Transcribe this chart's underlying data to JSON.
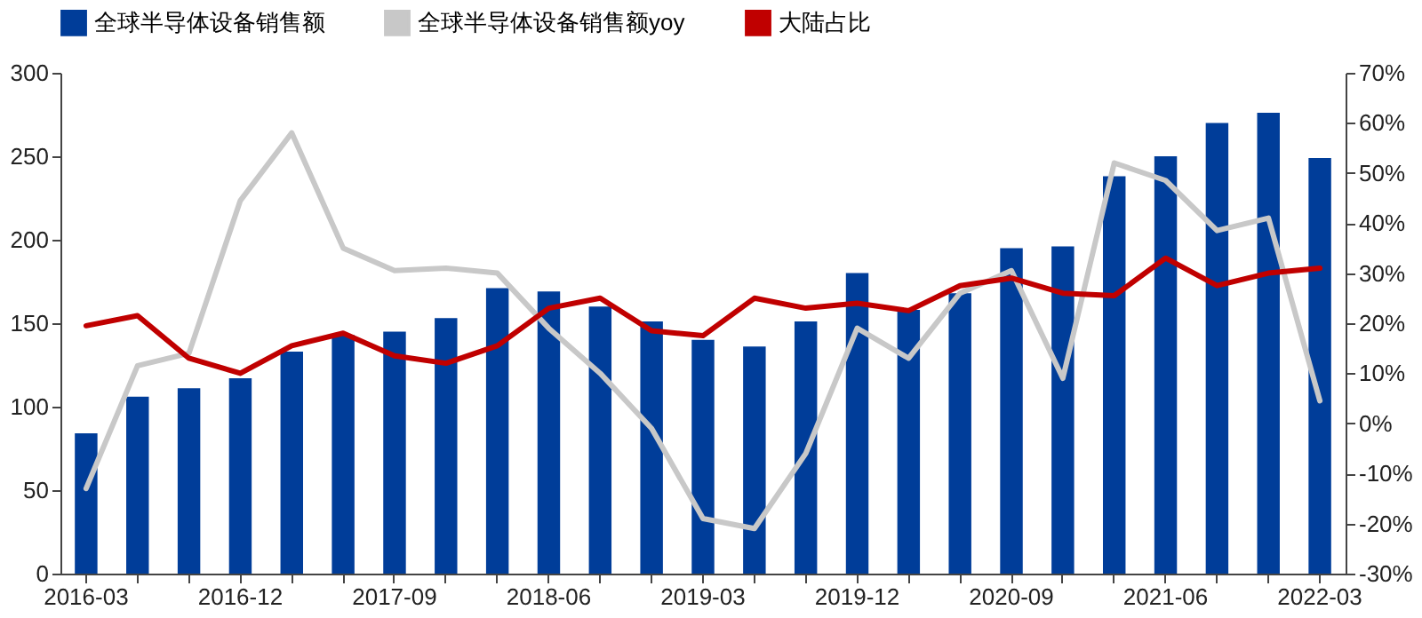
{
  "chart_data": {
    "type": "bar",
    "categories": [
      "2016-03",
      null,
      null,
      "2016-12",
      null,
      null,
      "2017-09",
      null,
      null,
      "2018-06",
      null,
      null,
      "2019-03",
      null,
      null,
      "2019-12",
      null,
      null,
      "2020-09",
      null,
      null,
      "2021-06",
      null,
      null,
      "2022-03"
    ],
    "series": [
      {
        "name": "全球半导体设备销售额",
        "color": "#003d99",
        "values": [
          84,
          106,
          111,
          117,
          133,
          143,
          145,
          153,
          171,
          169,
          160,
          151,
          140,
          136,
          151,
          180,
          158,
          168,
          195,
          196,
          238,
          250,
          270,
          276,
          249
        ]
      },
      {
        "name": "全球半导体设备销售额yoy",
        "type": "line",
        "axis": "y2",
        "color": "#c8c8c8",
        "values": [
          -13,
          11.5,
          14,
          44.5,
          58,
          35,
          30.5,
          31,
          30,
          19,
          10,
          -1,
          -19,
          -21,
          -6,
          19,
          13,
          26,
          30.5,
          9,
          52,
          48.5,
          38.5,
          41,
          4.5
        ]
      },
      {
        "name": "大陆占比",
        "type": "line",
        "axis": "y2",
        "color": "#c00000",
        "values": [
          19.5,
          21.5,
          13,
          10,
          15.5,
          18,
          13.5,
          12,
          15.5,
          23,
          25,
          18.5,
          17.5,
          25,
          23,
          24,
          22.5,
          27.5,
          29,
          26,
          25.5,
          33,
          27.5,
          30,
          31
        ]
      }
    ],
    "ylim": [
      0,
      300
    ],
    "yticks": [
      0,
      50,
      100,
      150,
      200,
      250,
      300
    ],
    "y2lim": [
      -30,
      70
    ],
    "y2ticks": [
      {
        "value": -30,
        "label": "-30%"
      },
      {
        "value": -20,
        "label": "-20%"
      },
      {
        "value": -10,
        "label": "-10%"
      },
      {
        "value": 0,
        "label": "0%"
      },
      {
        "value": 10,
        "label": "10%"
      },
      {
        "value": 20,
        "label": "20%"
      },
      {
        "value": 30,
        "label": "30%"
      },
      {
        "value": 40,
        "label": "40%"
      },
      {
        "value": 50,
        "label": "50%"
      },
      {
        "value": 60,
        "label": "60%"
      },
      {
        "value": 70,
        "label": "70%"
      }
    ],
    "legend": "top",
    "marker": "none",
    "line_style": "solid"
  }
}
